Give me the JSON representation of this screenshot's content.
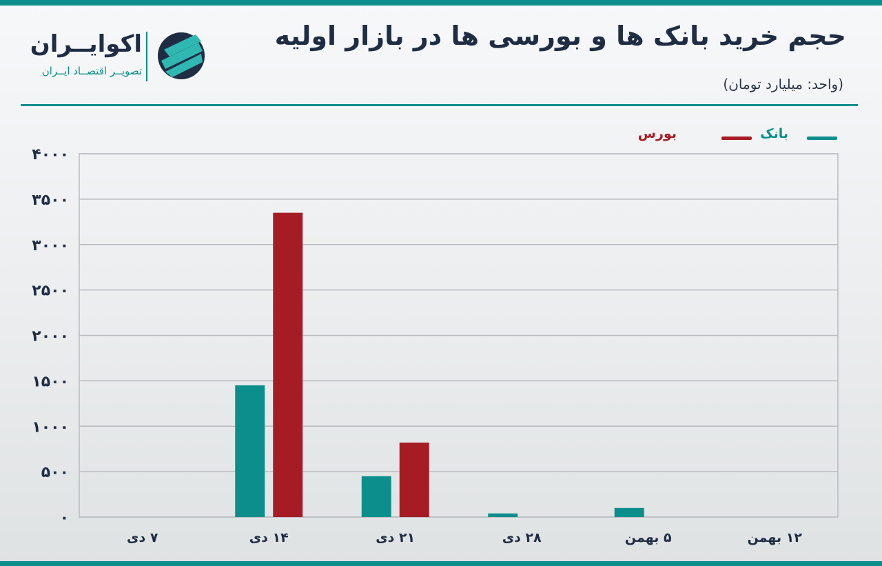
{
  "header": {
    "title": "حجم خرید بانک ها و بورسی ها در بازار اولیه",
    "unit": "(واحد: میلیارد تومان)"
  },
  "logo": {
    "name": "اکوایــران",
    "tagline": "تصویــر اقتصــاد ایــران"
  },
  "colors": {
    "accent": "#0b8e8c",
    "bank": "#0b8e8c",
    "bourse": "#a61c24",
    "text": "#1f2d44"
  },
  "chart_data": {
    "type": "bar",
    "categories": [
      "۷ دی",
      "۱۴ دی",
      "۲۱ دی",
      "۲۸ دی",
      "۵ بهمن",
      "۱۲ بهمن"
    ],
    "series": [
      {
        "name": "بانک",
        "color": "#0b8e8c",
        "values": [
          0,
          1450,
          450,
          40,
          100,
          0
        ]
      },
      {
        "name": "بورس",
        "color": "#a61c24",
        "values": [
          0,
          3350,
          820,
          0,
          0,
          0
        ]
      }
    ],
    "yticks": [
      0,
      500,
      1000,
      1500,
      2000,
      2500,
      3000,
      3500,
      4000
    ],
    "ytick_labels": [
      "۰",
      "۵۰۰",
      "۱۰۰۰",
      "۱۵۰۰",
      "۲۰۰۰",
      "۲۵۰۰",
      "۳۰۰۰",
      "۳۵۰۰",
      "۴۰۰۰"
    ],
    "ylim": [
      0,
      4000
    ],
    "grid": true,
    "legend_position": "top-right"
  }
}
